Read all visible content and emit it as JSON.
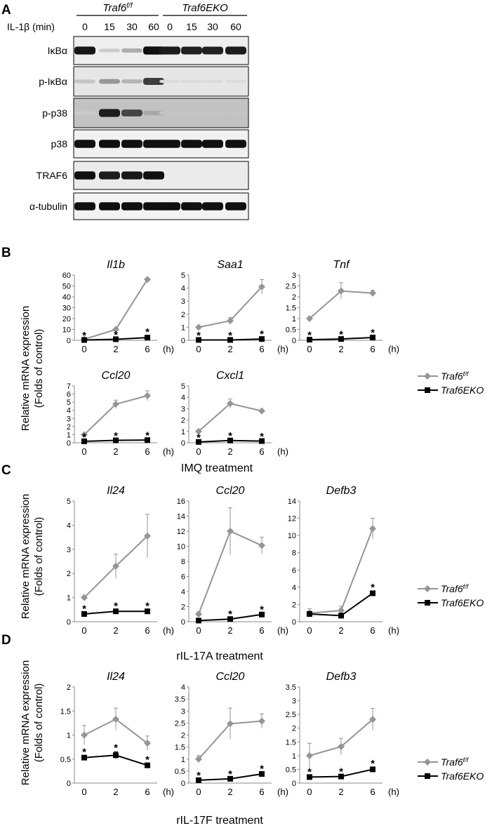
{
  "panels": {
    "A": "A",
    "B": "B",
    "C": "C",
    "D": "D"
  },
  "western": {
    "group_labels": [
      "Traf6",
      "Traf6EKO"
    ],
    "group_super": [
      "f/f",
      ""
    ],
    "treatment_label": "IL-1β (min)",
    "time_labels": [
      "0",
      "15",
      "30",
      "60",
      "0",
      "15",
      "30",
      "60"
    ],
    "blots": [
      {
        "label": "IκBα",
        "background": "#eeeeee",
        "band_intensity": [
          0.92,
          0.12,
          0.25,
          0.95,
          0.9,
          0.88,
          0.88,
          0.9
        ]
      },
      {
        "label": "p-IκBα",
        "background": "#e6e6e6",
        "band_intensity": [
          0.15,
          0.35,
          0.22,
          0.75,
          0.05,
          0.05,
          0.05,
          0.05
        ]
      },
      {
        "label": "p-p38",
        "background": "#c2c2c2",
        "band_intensity": [
          0.12,
          0.9,
          0.72,
          0.28,
          0.15,
          0.15,
          0.15,
          0.15
        ]
      },
      {
        "label": "p38",
        "background": "#f1f1f1",
        "band_intensity": [
          0.95,
          0.95,
          0.95,
          0.95,
          0.95,
          0.95,
          0.95,
          0.95
        ]
      },
      {
        "label": "TRAF6",
        "background": "#ebebeb",
        "band_intensity": [
          0.95,
          0.9,
          0.92,
          0.95,
          0,
          0,
          0,
          0
        ]
      },
      {
        "label": "α-tubulin",
        "background": "#f3f3f3",
        "band_intensity": [
          0.95,
          0.95,
          0.95,
          0.95,
          0.95,
          0.95,
          0.95,
          0.95
        ]
      }
    ]
  },
  "ylabel": [
    "Relative mRNA expression",
    "(Folds of control)"
  ],
  "legend": {
    "wt": "Traf6",
    "wt_sup": "f/f",
    "ko": "Traf6EKO"
  },
  "treatments": {
    "B": "IMQ treatment",
    "C": "rIL-17A treatment",
    "D": "rIL-17F treatment"
  },
  "chart_data": [
    {
      "panel": "B",
      "type": "line",
      "title": "Il1b",
      "x": [
        "0",
        "2",
        "6"
      ],
      "xunit": "(h)",
      "yticks": [
        "0",
        "10",
        "20",
        "30",
        "40",
        "50",
        "60"
      ],
      "ylim": [
        0,
        60
      ],
      "series": [
        {
          "name": "Traf6f/f",
          "values": [
            1,
            10,
            56
          ],
          "err": [
            0.5,
            1,
            1
          ],
          "color": "#959595",
          "marker": "diamond"
        },
        {
          "name": "Traf6EKO",
          "values": [
            0.3,
            1,
            2.5
          ],
          "err": [
            0.2,
            0.3,
            1.5
          ],
          "color": "#000000",
          "marker": "square"
        }
      ],
      "sig": [
        "*",
        "*",
        "*"
      ]
    },
    {
      "panel": "B",
      "type": "line",
      "title": "Saa1",
      "x": [
        "0",
        "2",
        "6"
      ],
      "xunit": "(h)",
      "yticks": [
        "0",
        "1",
        "2",
        "3",
        "4",
        "5"
      ],
      "ylim": [
        0,
        5
      ],
      "series": [
        {
          "name": "Traf6f/f",
          "values": [
            1,
            1.5,
            4.1
          ],
          "err": [
            0.05,
            0.25,
            0.55
          ],
          "color": "#959595",
          "marker": "diamond"
        },
        {
          "name": "Traf6EKO",
          "values": [
            0.03,
            0.03,
            0.1
          ],
          "err": [
            0.02,
            0.02,
            0.05
          ],
          "color": "#000000",
          "marker": "square"
        }
      ],
      "sig": [
        "*",
        "*",
        "*"
      ]
    },
    {
      "panel": "B",
      "type": "line",
      "title": "Tnf",
      "x": [
        "0",
        "2",
        "6"
      ],
      "xunit": "(h)",
      "yticks": [
        "0",
        "0.5",
        "1",
        "1.5",
        "2",
        "2.5",
        "3"
      ],
      "ylim": [
        0,
        3
      ],
      "series": [
        {
          "name": "Traf6f/f",
          "values": [
            1,
            2.27,
            2.17
          ],
          "err": [
            0.03,
            0.38,
            0.13
          ],
          "color": "#959595",
          "marker": "diamond"
        },
        {
          "name": "Traf6EKO",
          "values": [
            0.03,
            0.06,
            0.13
          ],
          "err": [
            0.02,
            0.02,
            0.03
          ],
          "color": "#000000",
          "marker": "square"
        }
      ],
      "sig": [
        "*",
        "*",
        "*"
      ]
    },
    {
      "panel": "B",
      "type": "line",
      "title": "Ccl20",
      "x": [
        "0",
        "2",
        "6"
      ],
      "xunit": "(h)",
      "yticks": [
        "0",
        "1",
        "2",
        "3",
        "4",
        "5",
        "6",
        "7"
      ],
      "ylim": [
        0,
        7
      ],
      "series": [
        {
          "name": "Traf6f/f",
          "values": [
            1,
            4.75,
            5.8
          ],
          "err": [
            0.05,
            0.5,
            0.6
          ],
          "color": "#959595",
          "marker": "diamond"
        },
        {
          "name": "Traf6EKO",
          "values": [
            0.18,
            0.3,
            0.33
          ],
          "err": [
            0.05,
            0.05,
            0.05
          ],
          "color": "#000000",
          "marker": "square"
        }
      ],
      "sig": [
        "*",
        "*",
        "*"
      ]
    },
    {
      "panel": "B",
      "type": "line",
      "title": "Cxcl1",
      "x": [
        "0",
        "2",
        "6"
      ],
      "xunit": "(h)",
      "yticks": [
        "0",
        "1",
        "2",
        "3",
        "4",
        "5"
      ],
      "ylim": [
        0,
        5
      ],
      "series": [
        {
          "name": "Traf6f/f",
          "values": [
            1,
            3.45,
            2.8
          ],
          "err": [
            0.05,
            0.4,
            0.08
          ],
          "color": "#959595",
          "marker": "diamond"
        },
        {
          "name": "Traf6EKO",
          "values": [
            0.07,
            0.2,
            0.15
          ],
          "err": [
            0.03,
            0.05,
            0.05
          ],
          "color": "#000000",
          "marker": "square"
        }
      ],
      "sig": [
        "*",
        "*",
        "*"
      ]
    },
    {
      "panel": "C",
      "type": "line",
      "title": "Il24",
      "x": [
        "0",
        "2",
        "6"
      ],
      "xunit": "(h)",
      "yticks": [
        "0",
        "1",
        "2",
        "3",
        "4",
        "5"
      ],
      "ylim": [
        0,
        5
      ],
      "series": [
        {
          "name": "Traf6f/f",
          "values": [
            1,
            2.3,
            3.55
          ],
          "err": [
            0.05,
            0.5,
            0.9
          ],
          "color": "#959595",
          "marker": "diamond"
        },
        {
          "name": "Traf6EKO",
          "values": [
            0.32,
            0.43,
            0.43
          ],
          "err": [
            0.05,
            0.05,
            0.05
          ],
          "color": "#000000",
          "marker": "square"
        }
      ],
      "sig": [
        "*",
        "*",
        "*"
      ]
    },
    {
      "panel": "C",
      "type": "line",
      "title": "Ccl20",
      "x": [
        "0",
        "2",
        "6"
      ],
      "xunit": "(h)",
      "yticks": [
        "0",
        "2",
        "4",
        "6",
        "8",
        "10",
        "12",
        "14",
        "16"
      ],
      "ylim": [
        0,
        16
      ],
      "series": [
        {
          "name": "Traf6f/f",
          "values": [
            1,
            12,
            10.1
          ],
          "err": [
            0.3,
            3.1,
            1.1
          ],
          "color": "#959595",
          "marker": "diamond"
        },
        {
          "name": "Traf6EKO",
          "values": [
            0.15,
            0.35,
            0.95
          ],
          "err": [
            0.05,
            0.1,
            0.1
          ],
          "color": "#000000",
          "marker": "square"
        }
      ],
      "sig": [
        "",
        "*",
        "*"
      ]
    },
    {
      "panel": "C",
      "type": "line",
      "title": "Defb3",
      "x": [
        "0",
        "2",
        "6"
      ],
      "xunit": "(h)",
      "yticks": [
        "0",
        "2",
        "4",
        "6",
        "8",
        "10",
        "12",
        "14"
      ],
      "ylim": [
        0,
        14
      ],
      "series": [
        {
          "name": "Traf6f/f",
          "values": [
            1,
            1.3,
            10.8
          ],
          "err": [
            0.5,
            0.5,
            1.2
          ],
          "color": "#959595",
          "marker": "diamond"
        },
        {
          "name": "Traf6EKO",
          "values": [
            0.9,
            0.7,
            3.3
          ],
          "err": [
            0.3,
            0.2,
            0.2
          ],
          "color": "#000000",
          "marker": "square"
        }
      ],
      "sig": [
        "",
        "",
        "*"
      ]
    },
    {
      "panel": "D",
      "type": "line",
      "title": "Il24",
      "x": [
        "0",
        "2",
        "6"
      ],
      "xunit": "(h)",
      "yticks": [
        "0",
        "0.5",
        "1",
        "1.5",
        "2"
      ],
      "ylim": [
        0,
        2
      ],
      "series": [
        {
          "name": "Traf6f/f",
          "values": [
            1,
            1.33,
            0.83
          ],
          "err": [
            0.2,
            0.23,
            0.15
          ],
          "color": "#959595",
          "marker": "diamond"
        },
        {
          "name": "Traf6EKO",
          "values": [
            0.53,
            0.58,
            0.37
          ],
          "err": [
            0.03,
            0.07,
            0.03
          ],
          "color": "#000000",
          "marker": "square"
        }
      ],
      "sig": [
        "*",
        "*",
        "*"
      ]
    },
    {
      "panel": "D",
      "type": "line",
      "title": "Ccl20",
      "x": [
        "0",
        "2",
        "6"
      ],
      "xunit": "(h)",
      "yticks": [
        "0",
        "0.5",
        "1",
        "1.5",
        "2",
        "2.5",
        "3",
        "3.5",
        "4"
      ],
      "ylim": [
        0,
        4
      ],
      "series": [
        {
          "name": "Traf6f/f",
          "values": [
            1,
            2.47,
            2.58
          ],
          "err": [
            0.15,
            0.65,
            0.3
          ],
          "color": "#959595",
          "marker": "diamond"
        },
        {
          "name": "Traf6EKO",
          "values": [
            0.12,
            0.18,
            0.38
          ],
          "err": [
            0.03,
            0.03,
            0.05
          ],
          "color": "#000000",
          "marker": "square"
        }
      ],
      "sig": [
        "*",
        "*",
        "*"
      ]
    },
    {
      "panel": "D",
      "type": "line",
      "title": "Defb3",
      "x": [
        "0",
        "2",
        "6"
      ],
      "xunit": "(h)",
      "yticks": [
        "0",
        "0.5",
        "1",
        "1.5",
        "2",
        "2.5",
        "3",
        "3.5"
      ],
      "ylim": [
        0,
        3.5
      ],
      "series": [
        {
          "name": "Traf6f/f",
          "values": [
            1,
            1.33,
            2.32
          ],
          "err": [
            0.45,
            0.3,
            0.4
          ],
          "color": "#959595",
          "marker": "diamond"
        },
        {
          "name": "Traf6EKO",
          "values": [
            0.22,
            0.24,
            0.5
          ],
          "err": [
            0.03,
            0.03,
            0.06
          ],
          "color": "#000000",
          "marker": "square"
        }
      ],
      "sig": [
        "*",
        "*",
        "*"
      ]
    }
  ]
}
